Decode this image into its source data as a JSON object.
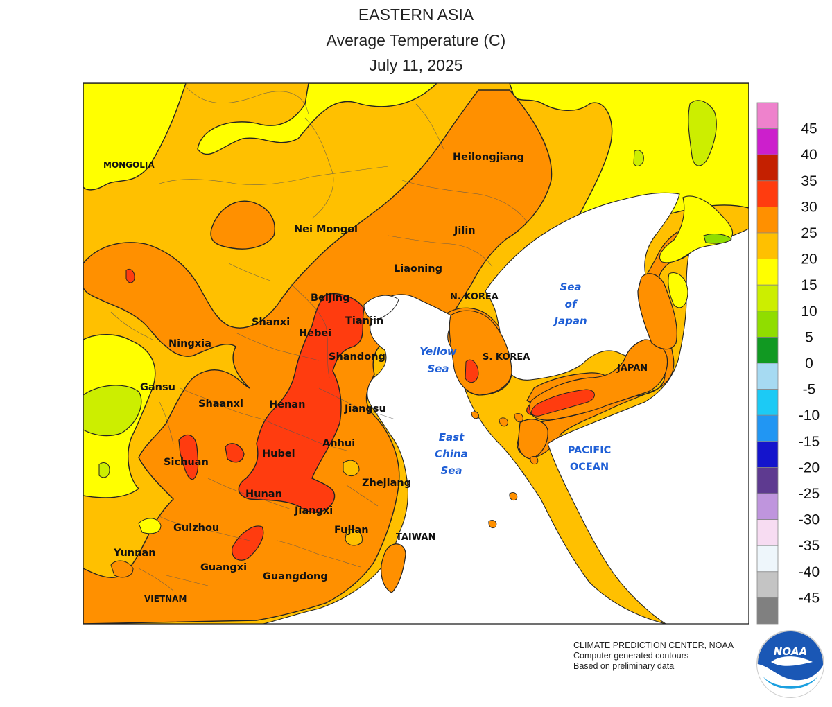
{
  "title": {
    "region": "EASTERN ASIA",
    "variable": "Average Temperature (C)",
    "date": "July 11, 2025"
  },
  "legend": {
    "colors": [
      "#ee82cc",
      "#cc1fcc",
      "#c42000",
      "#ff3c0f",
      "#ff9000",
      "#ffc000",
      "#ffff00",
      "#ccee00",
      "#90dd00",
      "#119922",
      "#a6daf2",
      "#1ccaf5",
      "#2196f3",
      "#1414cc",
      "#5e3a90",
      "#bf95dd",
      "#f7dcf2",
      "#eef6fb",
      "#c4c4c4",
      "#808080"
    ],
    "labels": [
      "45",
      "40",
      "35",
      "30",
      "25",
      "20",
      "15",
      "10",
      "5",
      "0",
      "-5",
      "-10",
      "-15",
      "-20",
      "-25",
      "-30",
      "-35",
      "-40",
      "-45"
    ]
  },
  "map": {
    "regions": [
      {
        "name": "MONGOLIA",
        "kind": "country"
      },
      {
        "name": "Heilongjiang",
        "kind": "region"
      },
      {
        "name": "Nei Mongol",
        "kind": "region"
      },
      {
        "name": "Jilin",
        "kind": "region"
      },
      {
        "name": "Liaoning",
        "kind": "region"
      },
      {
        "name": "Beijing",
        "kind": "region"
      },
      {
        "name": "N. KOREA",
        "kind": "country"
      },
      {
        "name": "Tianjin",
        "kind": "region"
      },
      {
        "name": "Shanxi",
        "kind": "region"
      },
      {
        "name": "Hebei",
        "kind": "region"
      },
      {
        "name": "Ningxia",
        "kind": "region"
      },
      {
        "name": "Shandong",
        "kind": "region"
      },
      {
        "name": "S. KOREA",
        "kind": "country"
      },
      {
        "name": "JAPAN",
        "kind": "country"
      },
      {
        "name": "Gansu",
        "kind": "region"
      },
      {
        "name": "Shaanxi",
        "kind": "region"
      },
      {
        "name": "Henan",
        "kind": "region"
      },
      {
        "name": "Jiangsu",
        "kind": "region"
      },
      {
        "name": "Anhui",
        "kind": "region"
      },
      {
        "name": "Sichuan",
        "kind": "region"
      },
      {
        "name": "Hubei",
        "kind": "region"
      },
      {
        "name": "Zhejiang",
        "kind": "region"
      },
      {
        "name": "Hunan",
        "kind": "region"
      },
      {
        "name": "Jiangxi",
        "kind": "region"
      },
      {
        "name": "Guizhou",
        "kind": "region"
      },
      {
        "name": "Fujian",
        "kind": "region"
      },
      {
        "name": "TAIWAN",
        "kind": "country"
      },
      {
        "name": "Yunnan",
        "kind": "region"
      },
      {
        "name": "Guangxi",
        "kind": "region"
      },
      {
        "name": "Guangdong",
        "kind": "region"
      },
      {
        "name": "VIETNAM",
        "kind": "country"
      }
    ],
    "seas": {
      "yellow_sea": [
        "Yellow",
        "Sea"
      ],
      "sea_of_japan": [
        "Sea",
        "of",
        "Japan"
      ],
      "east_china_sea": [
        "East",
        "China",
        "Sea"
      ],
      "pacific_ocean": [
        "PACIFIC",
        "OCEAN"
      ]
    }
  },
  "credits": {
    "line1": "CLIMATE PREDICTION CENTER, NOAA",
    "line2": "Computer generated contours",
    "line3": "Based on preliminary data"
  },
  "logo": {
    "text": "NOAA"
  }
}
